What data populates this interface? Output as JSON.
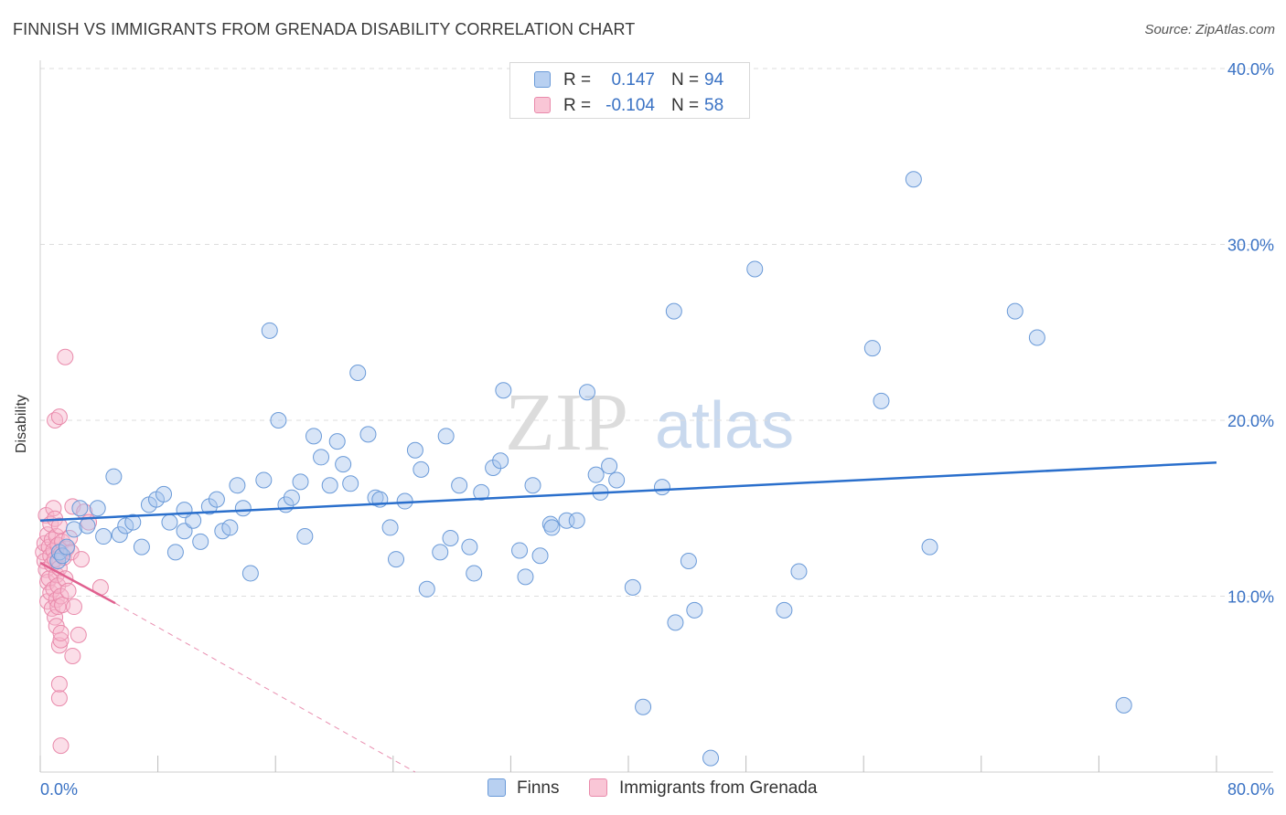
{
  "title": "FINNISH VS IMMIGRANTS FROM GRENADA DISABILITY CORRELATION CHART",
  "source": "Source: ZipAtlas.com",
  "watermark": {
    "part1": "ZIP",
    "part2": "atlas"
  },
  "legend_top": {
    "rows": [
      {
        "r_label": "R =",
        "r_value": "0.147",
        "n_label": "N =",
        "n_value": "94"
      },
      {
        "r_label": "R =",
        "r_value": "-0.104",
        "n_label": "N =",
        "n_value": "58"
      }
    ]
  },
  "legend_bottom": {
    "items": [
      "Finns",
      "Immigrants from Grenada"
    ]
  },
  "colors": {
    "finns_fill": "#a9c6ee",
    "finns_stroke": "#6a9ad8",
    "finns_line": "#2a6fcc",
    "grenada_fill": "#f6b6cb",
    "grenada_stroke": "#e98aab",
    "grenada_line": "#e0608f",
    "tick_label": "#3a72c4",
    "grid": "#dddddd"
  },
  "chart_data": {
    "type": "scatter",
    "title": "FINNISH VS IMMIGRANTS FROM GRENADA DISABILITY CORRELATION CHART",
    "xlabel": "",
    "ylabel": "Disability",
    "xlim": [
      0,
      80
    ],
    "ylim": [
      0,
      40
    ],
    "x_tick_labels": [
      "0.0%",
      "80.0%"
    ],
    "y_ticks": [
      10,
      20,
      30,
      40
    ],
    "y_tick_labels": [
      "10.0%",
      "20.0%",
      "30.0%",
      "40.0%"
    ],
    "grid": true,
    "legend_position": "top-center",
    "series": [
      {
        "name": "Finns",
        "r": 0.147,
        "n": 94,
        "trend": {
          "x": [
            0,
            80
          ],
          "y": [
            14.3,
            17.6
          ]
        },
        "points": [
          [
            1.2,
            12.0
          ],
          [
            1.3,
            12.5
          ],
          [
            1.5,
            12.3
          ],
          [
            1.8,
            12.8
          ],
          [
            2.3,
            13.8
          ],
          [
            2.7,
            15.0
          ],
          [
            3.2,
            14.0
          ],
          [
            3.9,
            15.0
          ],
          [
            4.3,
            13.4
          ],
          [
            5.0,
            16.8
          ],
          [
            5.4,
            13.5
          ],
          [
            5.8,
            14.0
          ],
          [
            6.3,
            14.2
          ],
          [
            6.9,
            12.8
          ],
          [
            7.4,
            15.2
          ],
          [
            7.9,
            15.5
          ],
          [
            8.4,
            15.8
          ],
          [
            8.8,
            14.2
          ],
          [
            9.2,
            12.5
          ],
          [
            9.8,
            13.7
          ],
          [
            10.4,
            14.3
          ],
          [
            10.9,
            13.1
          ],
          [
            11.5,
            15.1
          ],
          [
            12.0,
            15.5
          ],
          [
            12.4,
            13.7
          ],
          [
            12.9,
            13.9
          ],
          [
            13.4,
            16.3
          ],
          [
            13.8,
            15.0
          ],
          [
            14.3,
            11.3
          ],
          [
            15.2,
            16.6
          ],
          [
            15.6,
            25.1
          ],
          [
            16.2,
            20.0
          ],
          [
            16.7,
            15.2
          ],
          [
            17.1,
            15.6
          ],
          [
            17.7,
            16.5
          ],
          [
            18.0,
            13.4
          ],
          [
            18.6,
            19.1
          ],
          [
            19.1,
            17.9
          ],
          [
            19.7,
            16.3
          ],
          [
            20.2,
            18.8
          ],
          [
            20.6,
            17.5
          ],
          [
            21.1,
            16.4
          ],
          [
            21.6,
            22.7
          ],
          [
            22.3,
            19.2
          ],
          [
            22.8,
            15.6
          ],
          [
            23.1,
            15.5
          ],
          [
            23.8,
            13.9
          ],
          [
            24.2,
            12.1
          ],
          [
            24.8,
            15.4
          ],
          [
            25.5,
            18.3
          ],
          [
            25.9,
            17.2
          ],
          [
            26.3,
            10.4
          ],
          [
            27.2,
            12.5
          ],
          [
            27.6,
            19.1
          ],
          [
            27.9,
            13.3
          ],
          [
            28.5,
            16.3
          ],
          [
            29.2,
            12.8
          ],
          [
            29.5,
            11.3
          ],
          [
            30.0,
            15.9
          ],
          [
            30.8,
            17.3
          ],
          [
            31.3,
            17.7
          ],
          [
            31.5,
            21.7
          ],
          [
            32.6,
            12.6
          ],
          [
            33.0,
            11.1
          ],
          [
            33.5,
            16.3
          ],
          [
            34.0,
            12.3
          ],
          [
            34.7,
            14.1
          ],
          [
            34.8,
            13.9
          ],
          [
            35.8,
            14.3
          ],
          [
            36.5,
            14.3
          ],
          [
            37.2,
            21.6
          ],
          [
            37.8,
            16.9
          ],
          [
            38.1,
            15.9
          ],
          [
            38.7,
            17.4
          ],
          [
            39.2,
            16.6
          ],
          [
            40.3,
            10.5
          ],
          [
            41.0,
            3.7
          ],
          [
            42.3,
            16.2
          ],
          [
            43.1,
            26.2
          ],
          [
            43.2,
            8.5
          ],
          [
            44.1,
            12.0
          ],
          [
            44.5,
            9.2
          ],
          [
            48.6,
            28.6
          ],
          [
            50.6,
            9.2
          ],
          [
            51.6,
            11.4
          ],
          [
            56.6,
            24.1
          ],
          [
            57.2,
            21.1
          ],
          [
            59.4,
            33.7
          ],
          [
            60.5,
            12.8
          ],
          [
            66.3,
            26.2
          ],
          [
            67.8,
            24.7
          ],
          [
            73.7,
            3.8
          ],
          [
            45.6,
            0.8
          ],
          [
            9.8,
            14.9
          ]
        ]
      },
      {
        "name": "Immigrants from Grenada",
        "r": -0.104,
        "n": 58,
        "trend": {
          "x": [
            0,
            5.1
          ],
          "y": [
            11.9,
            9.6
          ]
        },
        "trend_extension": {
          "x": [
            5.1,
            25.5
          ],
          "y": [
            9.6,
            0.0
          ]
        },
        "points": [
          [
            0.2,
            12.5
          ],
          [
            0.3,
            13.0
          ],
          [
            0.3,
            12.0
          ],
          [
            0.4,
            11.5
          ],
          [
            0.4,
            14.6
          ],
          [
            0.5,
            13.5
          ],
          [
            0.5,
            10.8
          ],
          [
            0.5,
            9.7
          ],
          [
            0.6,
            12.8
          ],
          [
            0.6,
            11.0
          ],
          [
            0.7,
            14.1
          ],
          [
            0.7,
            12.3
          ],
          [
            0.7,
            10.2
          ],
          [
            0.8,
            13.2
          ],
          [
            0.8,
            11.8
          ],
          [
            0.8,
            9.3
          ],
          [
            0.9,
            15.0
          ],
          [
            0.9,
            12.6
          ],
          [
            0.9,
            10.4
          ],
          [
            1.0,
            14.4
          ],
          [
            1.0,
            12.1
          ],
          [
            1.0,
            8.8
          ],
          [
            1.1,
            13.4
          ],
          [
            1.1,
            11.2
          ],
          [
            1.1,
            9.8
          ],
          [
            1.2,
            12.9
          ],
          [
            1.2,
            10.6
          ],
          [
            1.2,
            9.4
          ],
          [
            1.3,
            14.0
          ],
          [
            1.3,
            11.6
          ],
          [
            1.4,
            12.4
          ],
          [
            1.4,
            10.0
          ],
          [
            1.5,
            13.1
          ],
          [
            1.5,
            9.5
          ],
          [
            1.6,
            12.2
          ],
          [
            1.7,
            11.0
          ],
          [
            1.8,
            12.7
          ],
          [
            1.9,
            10.3
          ],
          [
            2.0,
            13.3
          ],
          [
            2.1,
            12.5
          ],
          [
            2.2,
            15.1
          ],
          [
            2.3,
            9.4
          ],
          [
            2.6,
            7.8
          ],
          [
            2.8,
            12.1
          ],
          [
            3.0,
            14.8
          ],
          [
            3.3,
            14.2
          ],
          [
            4.1,
            10.5
          ],
          [
            1.7,
            23.6
          ],
          [
            1.0,
            20.0
          ],
          [
            1.3,
            20.2
          ],
          [
            1.1,
            8.3
          ],
          [
            1.3,
            7.2
          ],
          [
            1.4,
            7.5
          ],
          [
            1.4,
            7.9
          ],
          [
            2.2,
            6.6
          ],
          [
            1.3,
            4.2
          ],
          [
            1.3,
            5.0
          ],
          [
            1.4,
            1.5
          ]
        ]
      }
    ]
  }
}
